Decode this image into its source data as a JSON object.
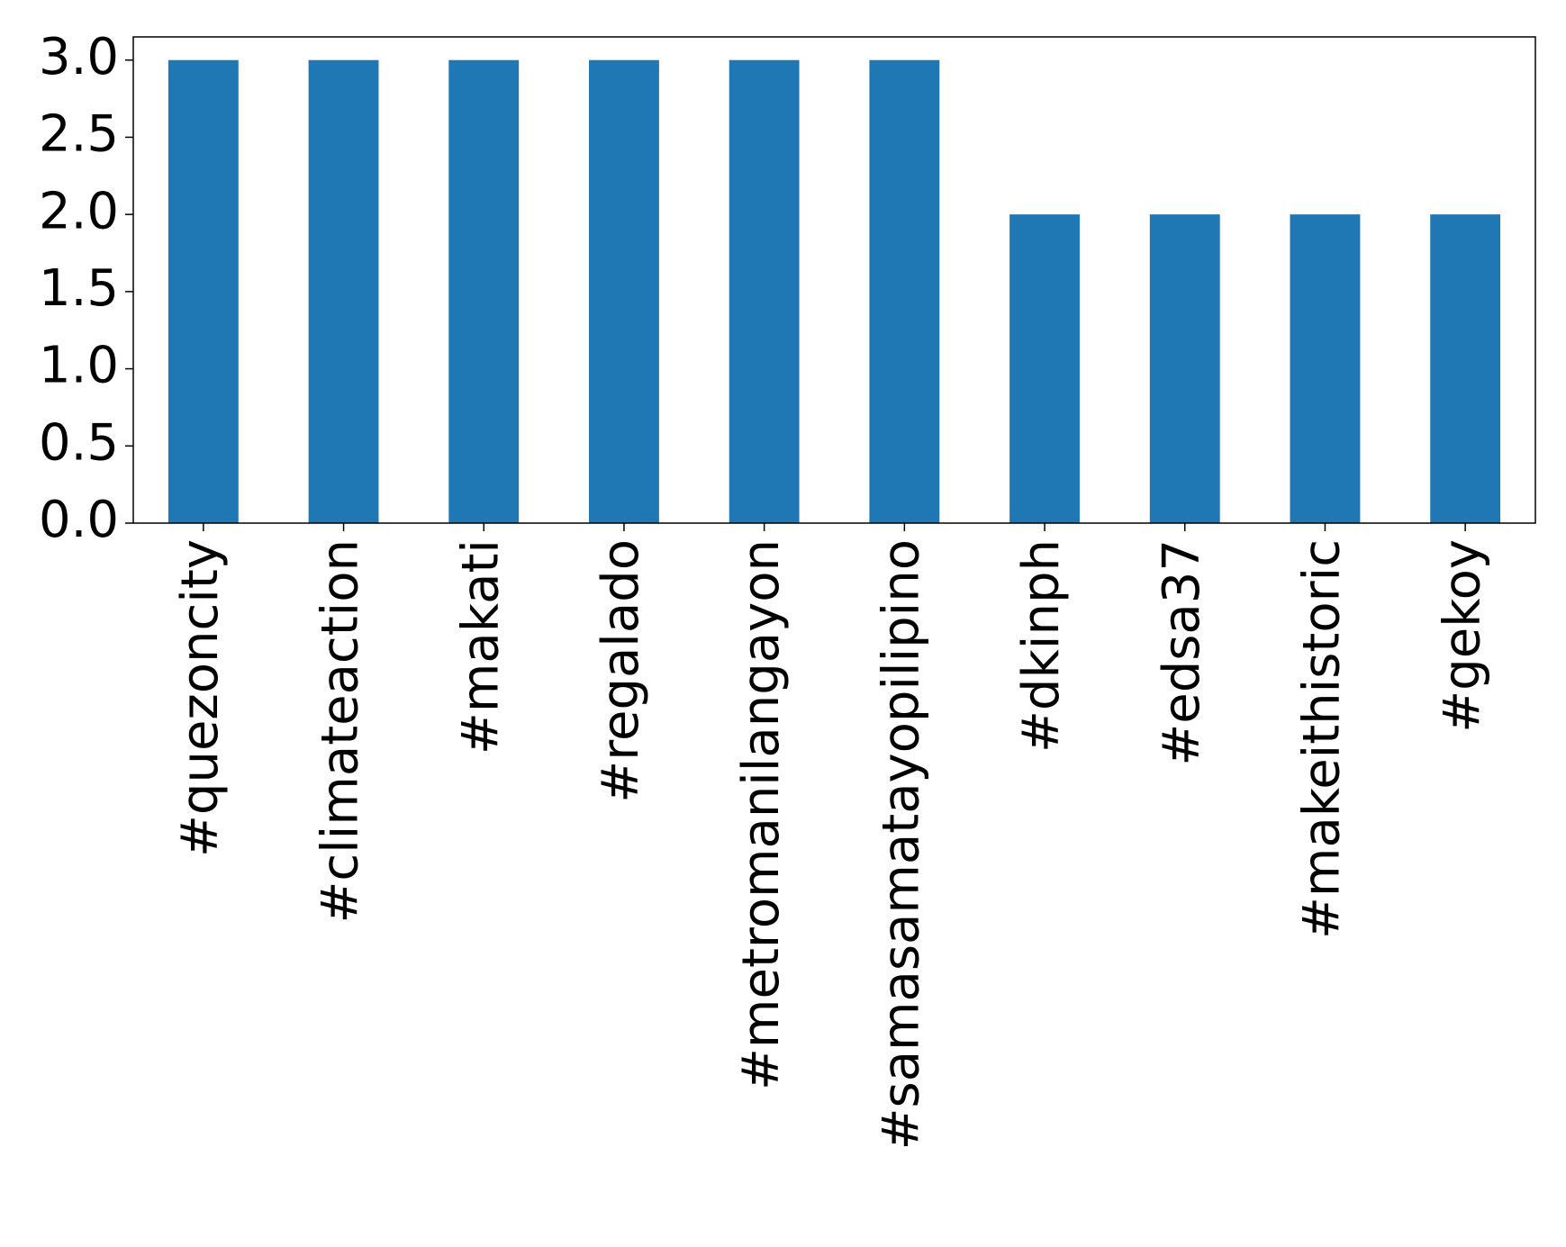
{
  "chart_data": {
    "type": "bar",
    "categories": [
      "#quezoncity",
      "#climateaction",
      "#makati",
      "#regalado",
      "#metromanilangayon",
      "#samasamatayopilipino",
      "#dkinph",
      "#edsa37",
      "#makeithistoric",
      "#gekoy"
    ],
    "values": [
      3,
      3,
      3,
      3,
      3,
      3,
      2,
      2,
      2,
      2
    ],
    "color": "#1f77b4",
    "ylim": [
      0,
      3.15
    ],
    "yticks": [
      {
        "value": 0,
        "label": "0.0"
      },
      0.5,
      {
        "value": 1,
        "label": "1.0"
      },
      1.5,
      {
        "value": 2,
        "label": "2.0"
      },
      2.5,
      {
        "value": 3,
        "label": "3.0"
      }
    ],
    "grid": false
  }
}
